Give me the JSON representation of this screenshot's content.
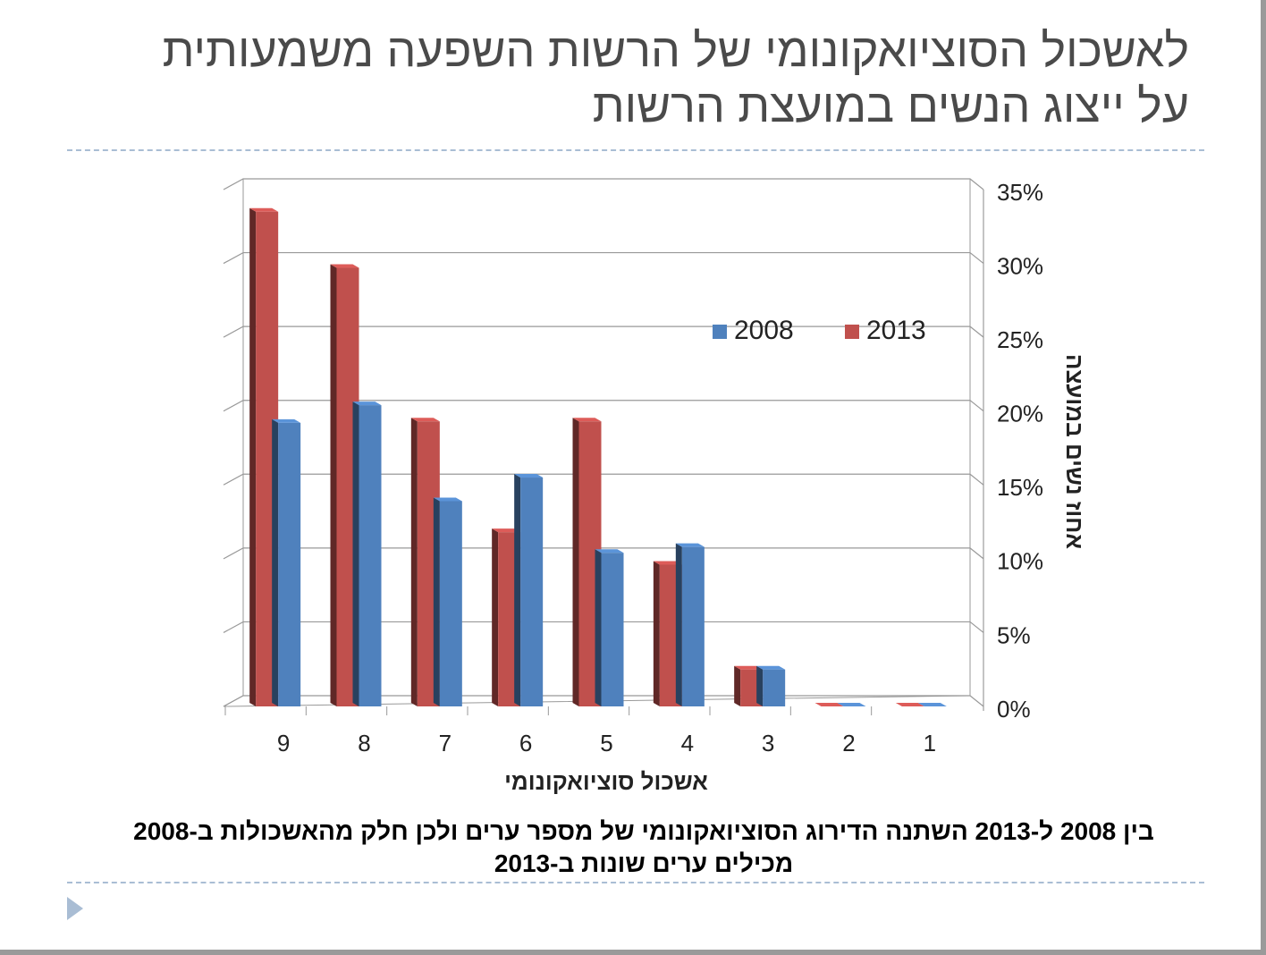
{
  "title": "לאשכול הסוציואקונומי של הרשות השפעה משמעותית על ייצוג הנשים במועצת הרשות",
  "note": "בין 2008 ל-2013 השתנה הדירוג הסוציואקונומי של מספר ערים ולכן חלק מהאשכולות ב-2008 מכילים ערים שונות ב-2013",
  "chart_data": {
    "type": "bar3d",
    "x_label": "אשכול סוציואקונומי",
    "y_label": "אחוז נשים במועצה",
    "categories": [
      "9",
      "8",
      "7",
      "6",
      "5",
      "4",
      "3",
      "2",
      "1"
    ],
    "series": [
      {
        "name": "2013",
        "color": "#c0504d",
        "values": [
          33.5,
          29.7,
          19.3,
          11.8,
          19.3,
          9.6,
          2.5,
          0,
          0
        ]
      },
      {
        "name": "2008",
        "color": "#4f81bd",
        "values": [
          19.2,
          20.4,
          13.9,
          15.5,
          10.4,
          10.8,
          2.5,
          0,
          0
        ]
      }
    ],
    "ylim": [
      0,
      35
    ],
    "yticks": [
      {
        "value": 0,
        "label": "0%"
      },
      {
        "value": 5,
        "label": "5%"
      },
      {
        "value": 10,
        "label": "10%"
      },
      {
        "value": 15,
        "label": "15%"
      },
      {
        "value": 20,
        "label": "20%"
      },
      {
        "value": 25,
        "label": "25%"
      },
      {
        "value": 30,
        "label": "30%"
      },
      {
        "value": 35,
        "label": "35%"
      }
    ],
    "grid": true
  }
}
